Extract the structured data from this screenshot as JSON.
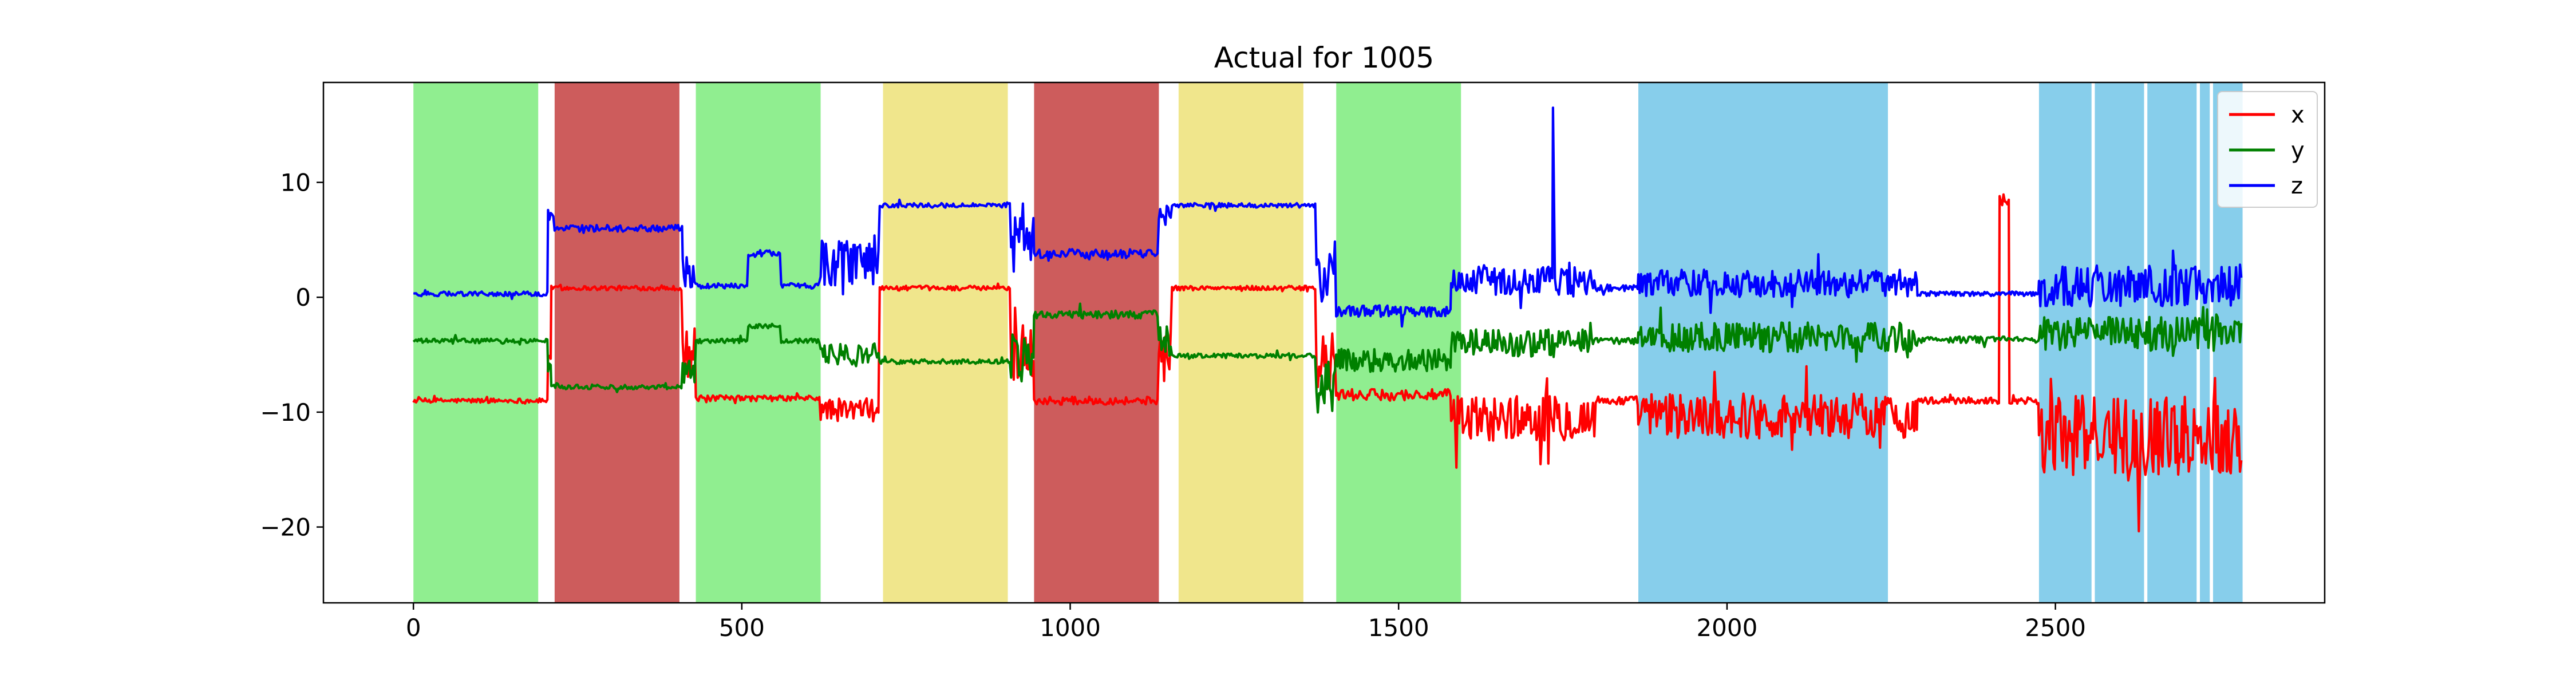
{
  "chart_data": {
    "type": "line",
    "title": "Actual for 1005",
    "xlabel": "",
    "ylabel": "",
    "xlim": [
      -137,
      2910
    ],
    "ylim": [
      -26.6,
      18.7
    ],
    "xticks": [
      0,
      500,
      1000,
      1500,
      2000,
      2500
    ],
    "yticks": [
      -20,
      -10,
      0,
      10
    ],
    "xtick_labels": [
      "0",
      "500",
      "1000",
      "1500",
      "2000",
      "2500"
    ],
    "ytick_labels": [
      "−20",
      "−10",
      "0",
      "10"
    ],
    "grid": false,
    "legend_position": "top-right",
    "bands": [
      {
        "x0": 0,
        "x1": 190,
        "color": "#90ee90"
      },
      {
        "x0": 215,
        "x1": 405,
        "color": "#cd5c5c"
      },
      {
        "x0": 430,
        "x1": 620,
        "color": "#90ee90"
      },
      {
        "x0": 715,
        "x1": 905,
        "color": "#f0e68c"
      },
      {
        "x0": 945,
        "x1": 1135,
        "color": "#cd5c5c"
      },
      {
        "x0": 1165,
        "x1": 1355,
        "color": "#f0e68c"
      },
      {
        "x0": 1405,
        "x1": 1595,
        "color": "#90ee90"
      },
      {
        "x0": 1865,
        "x1": 2245,
        "color": "#87ceeb"
      },
      {
        "x0": 2475,
        "x1": 2555,
        "color": "#87ceeb"
      },
      {
        "x0": 2560,
        "x1": 2635,
        "color": "#87ceeb"
      },
      {
        "x0": 2640,
        "x1": 2715,
        "color": "#87ceeb"
      },
      {
        "x0": 2720,
        "x1": 2735,
        "color": "#87ceeb"
      },
      {
        "x0": 2740,
        "x1": 2785,
        "color": "#87ceeb"
      }
    ],
    "series": [
      {
        "name": "x",
        "color": "#ff0000",
        "segments": [
          {
            "x0": 0,
            "x1": 205,
            "level": -9.0,
            "noise": 0.2
          },
          {
            "x0": 205,
            "x1": 210,
            "level": -5,
            "noise": 0.5
          },
          {
            "x0": 210,
            "x1": 410,
            "level": 0.8,
            "noise": 0.2
          },
          {
            "x0": 410,
            "x1": 430,
            "level": -5,
            "noise": 2.5
          },
          {
            "x0": 430,
            "x1": 620,
            "level": -8.8,
            "noise": 0.25
          },
          {
            "x0": 620,
            "x1": 710,
            "level": -9.8,
            "noise": 1.0
          },
          {
            "x0": 710,
            "x1": 910,
            "level": 0.8,
            "noise": 0.2
          },
          {
            "x0": 910,
            "x1": 945,
            "level": -5,
            "noise": 2.5
          },
          {
            "x0": 945,
            "x1": 1135,
            "level": -9.0,
            "noise": 0.35
          },
          {
            "x0": 1135,
            "x1": 1155,
            "level": -5,
            "noise": 2.5
          },
          {
            "x0": 1155,
            "x1": 1375,
            "level": 0.8,
            "noise": 0.2
          },
          {
            "x0": 1375,
            "x1": 1405,
            "level": -6,
            "noise": 3.0
          },
          {
            "x0": 1405,
            "x1": 1580,
            "level": -8.5,
            "noise": 0.5
          },
          {
            "x0": 1580,
            "x1": 1800,
            "level": -10.5,
            "noise": 2.0
          },
          {
            "x0": 1800,
            "x1": 1865,
            "level": -9.0,
            "noise": 0.4
          },
          {
            "x0": 1865,
            "x1": 2290,
            "level": -10.3,
            "noise": 2.0
          },
          {
            "x0": 2290,
            "x1": 2415,
            "level": -9.0,
            "noise": 0.3
          },
          {
            "x0": 2415,
            "x1": 2430,
            "level": 8.5,
            "noise": 0.5
          },
          {
            "x0": 2430,
            "x1": 2475,
            "level": -9.0,
            "noise": 0.3
          },
          {
            "x0": 2475,
            "x1": 2785,
            "level": -12.0,
            "noise": 3.5
          }
        ]
      },
      {
        "name": "y",
        "color": "#008000",
        "segments": [
          {
            "x0": 0,
            "x1": 205,
            "level": -3.8,
            "noise": 0.2
          },
          {
            "x0": 205,
            "x1": 210,
            "level": -6,
            "noise": 0.5
          },
          {
            "x0": 210,
            "x1": 410,
            "level": -7.8,
            "noise": 0.2
          },
          {
            "x0": 410,
            "x1": 430,
            "level": -6,
            "noise": 1.5
          },
          {
            "x0": 430,
            "x1": 510,
            "level": -3.8,
            "noise": 0.2
          },
          {
            "x0": 510,
            "x1": 560,
            "level": -2.5,
            "noise": 0.2
          },
          {
            "x0": 560,
            "x1": 620,
            "level": -3.8,
            "noise": 0.2
          },
          {
            "x0": 620,
            "x1": 710,
            "level": -5.0,
            "noise": 1.0
          },
          {
            "x0": 710,
            "x1": 910,
            "level": -5.6,
            "noise": 0.2
          },
          {
            "x0": 910,
            "x1": 945,
            "level": -5,
            "noise": 2.5
          },
          {
            "x0": 945,
            "x1": 1135,
            "level": -1.5,
            "noise": 0.35
          },
          {
            "x0": 1135,
            "x1": 1155,
            "level": -4,
            "noise": 1.5
          },
          {
            "x0": 1155,
            "x1": 1375,
            "level": -5.1,
            "noise": 0.2
          },
          {
            "x0": 1375,
            "x1": 1405,
            "level": -8,
            "noise": 2.5
          },
          {
            "x0": 1405,
            "x1": 1580,
            "level": -5.5,
            "noise": 1.0
          },
          {
            "x0": 1580,
            "x1": 1800,
            "level": -4.0,
            "noise": 1.2
          },
          {
            "x0": 1800,
            "x1": 1865,
            "level": -3.8,
            "noise": 0.3
          },
          {
            "x0": 1865,
            "x1": 2290,
            "level": -3.5,
            "noise": 1.3
          },
          {
            "x0": 2290,
            "x1": 2475,
            "level": -3.7,
            "noise": 0.3
          },
          {
            "x0": 2475,
            "x1": 2785,
            "level": -3.2,
            "noise": 1.5
          }
        ]
      },
      {
        "name": "z",
        "color": "#0000ff",
        "segments": [
          {
            "x0": 0,
            "x1": 205,
            "level": 0.3,
            "noise": 0.2
          },
          {
            "x0": 205,
            "x1": 215,
            "level": 7.0,
            "noise": 0.5
          },
          {
            "x0": 215,
            "x1": 410,
            "level": 6.0,
            "noise": 0.3
          },
          {
            "x0": 410,
            "x1": 430,
            "level": 2.0,
            "noise": 1.5
          },
          {
            "x0": 430,
            "x1": 510,
            "level": 1.0,
            "noise": 0.25
          },
          {
            "x0": 510,
            "x1": 560,
            "level": 3.8,
            "noise": 0.3
          },
          {
            "x0": 560,
            "x1": 620,
            "level": 1.0,
            "noise": 0.25
          },
          {
            "x0": 620,
            "x1": 710,
            "level": 3.0,
            "noise": 2.0
          },
          {
            "x0": 710,
            "x1": 910,
            "level": 8.0,
            "noise": 0.2
          },
          {
            "x0": 910,
            "x1": 945,
            "level": 5.0,
            "noise": 2.0
          },
          {
            "x0": 945,
            "x1": 1135,
            "level": 3.8,
            "noise": 0.4
          },
          {
            "x0": 1135,
            "x1": 1155,
            "level": 7.0,
            "noise": 1.0
          },
          {
            "x0": 1155,
            "x1": 1375,
            "level": 8.0,
            "noise": 0.2
          },
          {
            "x0": 1375,
            "x1": 1405,
            "level": 2.0,
            "noise": 3.0
          },
          {
            "x0": 1405,
            "x1": 1580,
            "level": -1.2,
            "noise": 0.5
          },
          {
            "x0": 1580,
            "x1": 1800,
            "level": 1.5,
            "noise": 1.3
          },
          {
            "x0": 1800,
            "x1": 1865,
            "level": 0.8,
            "noise": 0.3
          },
          {
            "x0": 1865,
            "x1": 2290,
            "level": 1.2,
            "noise": 1.2
          },
          {
            "x0": 2290,
            "x1": 2475,
            "level": 0.3,
            "noise": 0.2
          },
          {
            "x0": 2475,
            "x1": 2785,
            "level": 1.0,
            "noise": 1.8
          }
        ],
        "spikes": [
          {
            "x": 1735,
            "y": 16.5
          },
          {
            "x": 1760,
            "y": 3.0
          }
        ]
      }
    ]
  }
}
